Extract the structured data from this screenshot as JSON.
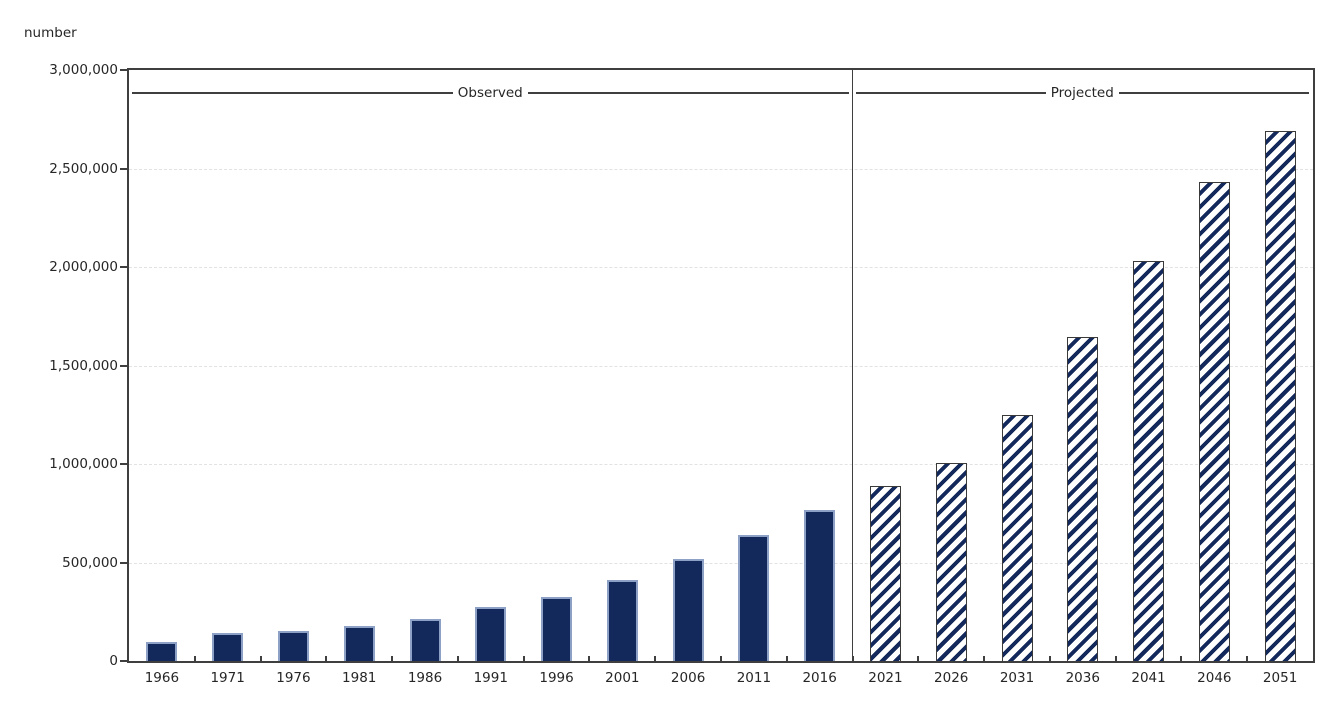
{
  "unit_label": "number",
  "colors": {
    "bar-fill": "#13295c",
    "bar-border": "#8da1c7",
    "hatch-stripe": "#13295c",
    "hatch-outline": "#3a3a3a",
    "frame": "#3f3f3f",
    "grid": "#e2e2e2",
    "text": "#262626"
  },
  "chart_data": {
    "type": "bar",
    "title": "",
    "ylabel": "number",
    "xlabel": "",
    "ylim": [
      0,
      3000000
    ],
    "ytick_interval": 500000,
    "ytick_labels": [
      "0",
      "500,000",
      "1,000,000",
      "1,500,000",
      "2,000,000",
      "2,500,000",
      "3,000,000"
    ],
    "grid": "horizontal-dashed",
    "legend_position": "none",
    "section_annotations": [
      "Observed",
      "Projected"
    ],
    "categories": [
      "1966",
      "1971",
      "1976",
      "1981",
      "1986",
      "1991",
      "1996",
      "2001",
      "2006",
      "2011",
      "2016",
      "2021",
      "2026",
      "2031",
      "2036",
      "2041",
      "2046",
      "2051"
    ],
    "series": [
      {
        "name": "Observed",
        "style": "solid",
        "categories": [
          "1966",
          "1971",
          "1976",
          "1981",
          "1986",
          "1991",
          "1996",
          "2001",
          "2006",
          "2011",
          "2016"
        ],
        "values": [
          95000,
          140000,
          150000,
          180000,
          215000,
          275000,
          325000,
          410000,
          520000,
          640000,
          765000
        ]
      },
      {
        "name": "Projected",
        "style": "hatched",
        "categories": [
          "2021",
          "2026",
          "2031",
          "2036",
          "2041",
          "2046",
          "2051"
        ],
        "values": [
          890000,
          1005000,
          1250000,
          1645000,
          2030000,
          2430000,
          2690000
        ]
      }
    ]
  }
}
